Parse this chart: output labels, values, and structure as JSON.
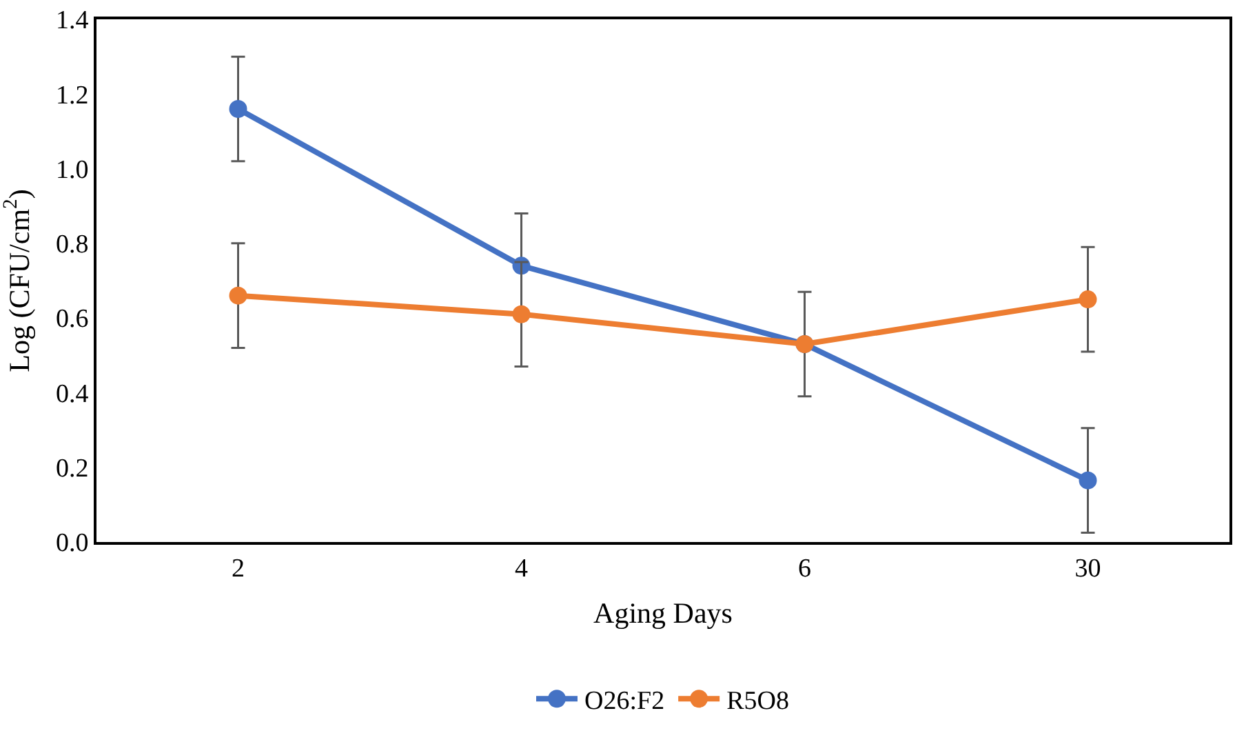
{
  "chart_data": {
    "type": "line",
    "xlabel": "Aging Days",
    "ylabel": "Log (CFU/cm$^{2}$)",
    "categories": [
      "2",
      "4",
      "6",
      "30"
    ],
    "series": [
      {
        "name": "O26:F2",
        "color": "#4472c4",
        "values": [
          1.16,
          0.74,
          0.53,
          0.165
        ],
        "errors": [
          0.14,
          0.14,
          null,
          0.14
        ]
      },
      {
        "name": "R5O8",
        "color": "#ed7d31",
        "values": [
          0.66,
          0.61,
          0.53,
          0.65
        ],
        "errors": [
          0.14,
          0.14,
          0.14,
          0.14
        ]
      }
    ],
    "ylim": [
      0,
      1.4
    ],
    "yticks": [
      {
        "value": 0,
        "label": "0.0"
      },
      0.2,
      0.4,
      0.6,
      0.8,
      {
        "value": 1,
        "label": "1.0"
      },
      1.2,
      1.4
    ],
    "grid": false,
    "legend": "bottom",
    "marker": "circle",
    "line_style": "solid"
  }
}
